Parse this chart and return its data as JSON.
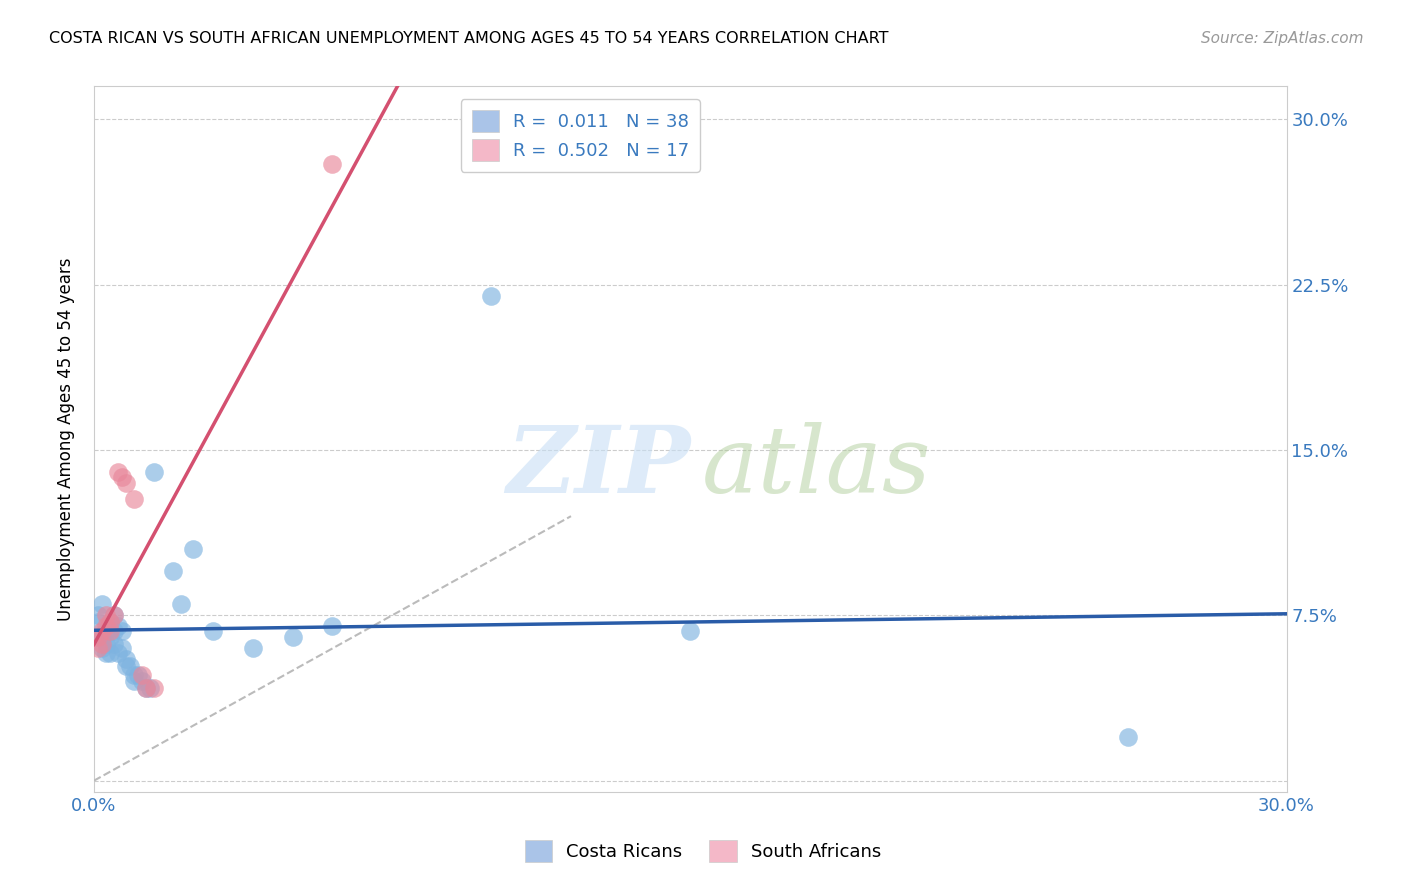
{
  "title": "COSTA RICAN VS SOUTH AFRICAN UNEMPLOYMENT AMONG AGES 45 TO 54 YEARS CORRELATION CHART",
  "source": "Source: ZipAtlas.com",
  "ylabel_label": "Unemployment Among Ages 45 to 54 years",
  "xlim": [
    0.0,
    0.3
  ],
  "ylim": [
    -0.005,
    0.315
  ],
  "xticks": [
    0.0,
    0.05,
    0.1,
    0.15,
    0.2,
    0.25,
    0.3
  ],
  "yticks": [
    0.0,
    0.075,
    0.15,
    0.225,
    0.3
  ],
  "xticklabels": [
    "0.0%",
    "",
    "",
    "",
    "",
    "",
    "30.0%"
  ],
  "yticklabels_right": [
    "",
    "7.5%",
    "15.0%",
    "22.5%",
    "30.0%"
  ],
  "legend_label_blue": "R =  0.011   N = 38",
  "legend_label_pink": "R =  0.502   N = 17",
  "blue_scatter_color": "#7eb3e0",
  "pink_scatter_color": "#e8879a",
  "blue_line_color": "#2a5ca8",
  "pink_line_color": "#d45070",
  "diagonal_color": "#bbbbbb",
  "legend_patch_blue": "#aac4e8",
  "legend_patch_pink": "#f4b8c8",
  "legend_text_color": "#3a7abf",
  "tick_color": "#3a7abf",
  "costa_rican_points": [
    [
      0.001,
      0.075
    ],
    [
      0.001,
      0.072
    ],
    [
      0.002,
      0.08
    ],
    [
      0.002,
      0.065
    ],
    [
      0.002,
      0.06
    ],
    [
      0.003,
      0.068
    ],
    [
      0.003,
      0.062
    ],
    [
      0.003,
      0.058
    ],
    [
      0.004,
      0.072
    ],
    [
      0.004,
      0.065
    ],
    [
      0.004,
      0.058
    ],
    [
      0.005,
      0.075
    ],
    [
      0.005,
      0.068
    ],
    [
      0.005,
      0.062
    ],
    [
      0.006,
      0.07
    ],
    [
      0.006,
      0.058
    ],
    [
      0.007,
      0.068
    ],
    [
      0.007,
      0.06
    ],
    [
      0.008,
      0.055
    ],
    [
      0.008,
      0.052
    ],
    [
      0.009,
      0.052
    ],
    [
      0.01,
      0.048
    ],
    [
      0.01,
      0.045
    ],
    [
      0.011,
      0.048
    ],
    [
      0.012,
      0.045
    ],
    [
      0.013,
      0.042
    ],
    [
      0.014,
      0.042
    ],
    [
      0.015,
      0.14
    ],
    [
      0.02,
      0.095
    ],
    [
      0.022,
      0.08
    ],
    [
      0.025,
      0.105
    ],
    [
      0.03,
      0.068
    ],
    [
      0.04,
      0.06
    ],
    [
      0.05,
      0.065
    ],
    [
      0.06,
      0.07
    ],
    [
      0.1,
      0.22
    ],
    [
      0.15,
      0.068
    ],
    [
      0.26,
      0.02
    ]
  ],
  "south_african_points": [
    [
      0.001,
      0.065
    ],
    [
      0.001,
      0.06
    ],
    [
      0.002,
      0.068
    ],
    [
      0.002,
      0.062
    ],
    [
      0.003,
      0.075
    ],
    [
      0.003,
      0.07
    ],
    [
      0.004,
      0.072
    ],
    [
      0.004,
      0.068
    ],
    [
      0.005,
      0.075
    ],
    [
      0.006,
      0.14
    ],
    [
      0.007,
      0.138
    ],
    [
      0.008,
      0.135
    ],
    [
      0.01,
      0.128
    ],
    [
      0.012,
      0.048
    ],
    [
      0.013,
      0.042
    ],
    [
      0.015,
      0.042
    ],
    [
      0.06,
      0.28
    ]
  ]
}
